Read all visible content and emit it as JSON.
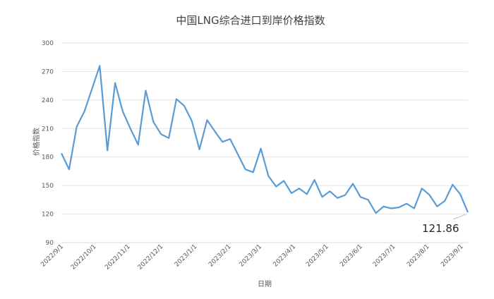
{
  "chart_data": {
    "type": "line",
    "title": "中国LNG综合进口到岸价格指数",
    "xlabel": "日期",
    "ylabel": "价格指数",
    "ylim": [
      90,
      300
    ],
    "yticks": [
      90,
      120,
      150,
      180,
      210,
      240,
      270,
      300
    ],
    "grid": "horizontal",
    "legend": "none",
    "xticks": [
      "2022/9/1",
      "2022/10/1",
      "2022/11/1",
      "2022/12/1",
      "2023/1/1",
      "2023/2/1",
      "2023/3/1",
      "2023/4/1",
      "2023/5/1",
      "2023/6/1",
      "2023/7/1",
      "2023/8/1",
      "2023/9/1"
    ],
    "series": [
      {
        "color": "#5b9bd5",
        "x": [
          "2022/9/1",
          "2022/9/8",
          "2022/9/15",
          "2022/9/22",
          "2022/9/29",
          "2022/10/6",
          "2022/10/13",
          "2022/10/20",
          "2022/10/27",
          "2022/11/3",
          "2022/11/10",
          "2022/11/17",
          "2022/11/24",
          "2022/12/1",
          "2022/12/8",
          "2022/12/15",
          "2022/12/22",
          "2022/12/29",
          "2023/1/5",
          "2023/1/12",
          "2023/1/19",
          "2023/1/26",
          "2023/2/2",
          "2023/2/9",
          "2023/2/16",
          "2023/2/23",
          "2023/3/2",
          "2023/3/9",
          "2023/3/16",
          "2023/3/23",
          "2023/3/30",
          "2023/4/6",
          "2023/4/13",
          "2023/4/20",
          "2023/4/27",
          "2023/5/4",
          "2023/5/11",
          "2023/5/18",
          "2023/5/25",
          "2023/6/1",
          "2023/6/8",
          "2023/6/15",
          "2023/6/22",
          "2023/6/29",
          "2023/7/6",
          "2023/7/13",
          "2023/7/20",
          "2023/7/27",
          "2023/8/3",
          "2023/8/10",
          "2023/8/17",
          "2023/8/24",
          "2023/8/31",
          "2023/9/7"
        ],
        "values": [
          184,
          167,
          212,
          228,
          252,
          276,
          187,
          258,
          228,
          210,
          193,
          250,
          217,
          204,
          200,
          241,
          234,
          218,
          188,
          219,
          207,
          196,
          199,
          183,
          167,
          164,
          189,
          160,
          149,
          155,
          142,
          147,
          141,
          156,
          138,
          144,
          137,
          140,
          152,
          138,
          135,
          121,
          128,
          126,
          127,
          131,
          126,
          147,
          140,
          128,
          134,
          151,
          141,
          121.86
        ]
      }
    ],
    "annotation": "121.86"
  }
}
